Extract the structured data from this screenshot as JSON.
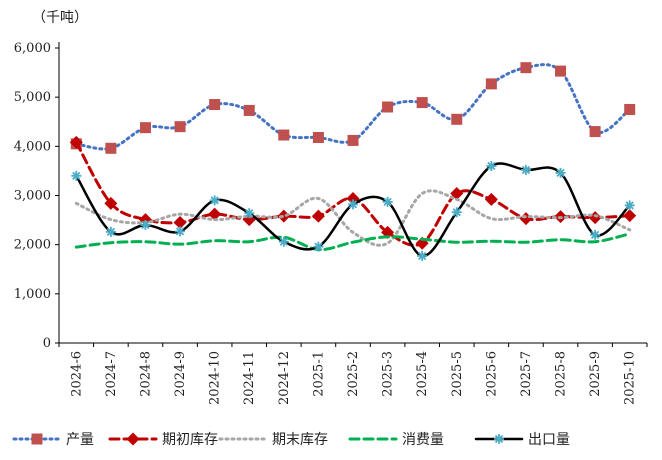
{
  "chart_data": {
    "type": "line",
    "unit_label": "（千吨）",
    "categories": [
      "2024-6",
      "2024-7",
      "2024-8",
      "2024-9",
      "2024-10",
      "2024-11",
      "2024-12",
      "2025-1",
      "2025-2",
      "2025-3",
      "2025-4",
      "2025-5",
      "2025-6",
      "2025-7",
      "2025-8",
      "2025-9",
      "2025-10"
    ],
    "ylim": [
      0,
      6000
    ],
    "yticks": [
      0,
      1000,
      2000,
      3000,
      4000,
      5000,
      6000
    ],
    "ytick_labels": [
      "0",
      "1,000",
      "2,000",
      "3,000",
      "4,000",
      "5,000",
      "6,000"
    ],
    "grid": false,
    "legend_position": "bottom",
    "series": [
      {
        "name": "产量",
        "color": "#c0504d",
        "line": "dotted",
        "line_color": "#4472c4",
        "marker": "square",
        "values": [
          4050,
          3960,
          4380,
          4400,
          4850,
          4730,
          4230,
          4180,
          4120,
          4800,
          4890,
          4550,
          5270,
          5600,
          5530,
          4300,
          4750
        ]
      },
      {
        "name": "期初库存",
        "color": "#c00000",
        "line": "dashed",
        "marker": "diamond",
        "values": [
          4080,
          2840,
          2510,
          2450,
          2620,
          2510,
          2580,
          2580,
          2940,
          2250,
          2030,
          3040,
          2920,
          2530,
          2570,
          2550,
          2590
        ]
      },
      {
        "name": "期末库存",
        "color": "#a6a6a6",
        "line": "dotted",
        "marker": "none",
        "values": [
          2840,
          2510,
          2450,
          2620,
          2510,
          2580,
          2580,
          2940,
          2250,
          2030,
          3040,
          2920,
          2530,
          2570,
          2550,
          2590,
          2300
        ]
      },
      {
        "name": "消费量",
        "color": "#00b050",
        "line": "dashed",
        "marker": "none",
        "values": [
          1950,
          2040,
          2060,
          2010,
          2080,
          2060,
          2150,
          1900,
          2050,
          2160,
          2110,
          2050,
          2070,
          2050,
          2100,
          2060,
          2220
        ]
      },
      {
        "name": "出口量",
        "color": "#000000",
        "line": "solid",
        "marker": "star",
        "marker_color": "#4bacc6",
        "values": [
          3400,
          2260,
          2400,
          2270,
          2900,
          2640,
          2060,
          1960,
          2820,
          2870,
          1770,
          2660,
          3600,
          3520,
          3460,
          2200,
          2800
        ]
      }
    ]
  }
}
